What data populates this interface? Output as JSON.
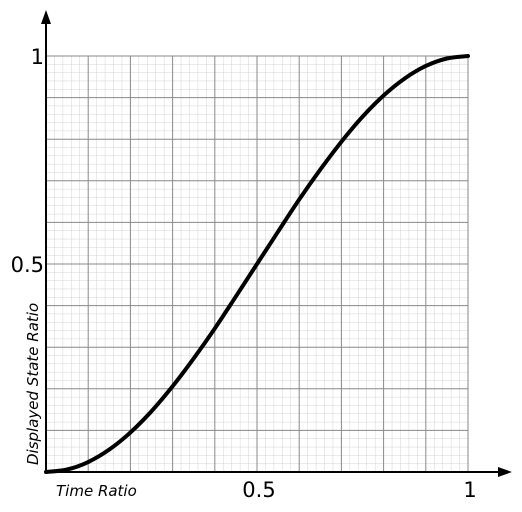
{
  "chart_data": {
    "type": "line",
    "title": "",
    "xlabel": "Time Ratio",
    "ylabel": "Displayed State Ratio",
    "xlim": [
      0,
      1
    ],
    "ylim": [
      0,
      1
    ],
    "grid": true,
    "x_ticks": [
      {
        "value": 0.5,
        "label": "0.5"
      },
      {
        "value": 1,
        "label": "1"
      }
    ],
    "y_ticks": [
      {
        "value": 0.5,
        "label": "0.5"
      },
      {
        "value": 1,
        "label": "1"
      }
    ],
    "series": [
      {
        "color": "#000000",
        "x": [
          0,
          0.05,
          0.1,
          0.15,
          0.2,
          0.25,
          0.3,
          0.35,
          0.4,
          0.45,
          0.5,
          0.55,
          0.6,
          0.65,
          0.7,
          0.75,
          0.8,
          0.85,
          0.9,
          0.95,
          1
        ],
        "y": [
          0,
          0.006,
          0.024,
          0.054,
          0.095,
          0.146,
          0.206,
          0.273,
          0.345,
          0.422,
          0.5,
          0.578,
          0.655,
          0.727,
          0.794,
          0.854,
          0.905,
          0.946,
          0.976,
          0.994,
          1
        ]
      }
    ]
  }
}
